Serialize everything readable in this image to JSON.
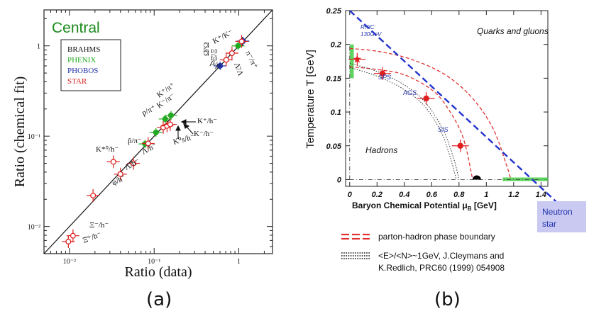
{
  "captions": {
    "a": "(a)",
    "b": "(b)"
  },
  "colors": {
    "brahms": "#111111",
    "phenix": "#22aa22",
    "phobos": "#2233aa",
    "star": "#dd2222",
    "central": "#1a8a1a",
    "dashblue": "#2233cc",
    "neutron_box": "#c9c9f2"
  },
  "chart_data": [
    {
      "type": "scatter",
      "panel": "a",
      "title": "Central",
      "xlabel": "Ratio (data)",
      "ylabel": "Ratio (chemical fit)",
      "xscale": "log",
      "yscale": "log",
      "xlim": [
        0.005,
        2.5
      ],
      "ylim": [
        0.005,
        2.5
      ],
      "xticks": [
        {
          "value": 0.01,
          "label": "10⁻²"
        },
        {
          "value": 0.1,
          "label": "10⁻¹"
        },
        {
          "value": 1,
          "label": "1"
        }
      ],
      "yticks": [
        {
          "value": 0.01,
          "label": "10⁻²"
        },
        {
          "value": 0.1,
          "label": "10⁻¹"
        },
        {
          "value": 1,
          "label": "1"
        }
      ],
      "legend": {
        "position": "top-left",
        "entries": [
          "BRAHMS",
          "PHENIX",
          "PHOBOS",
          "STAR"
        ]
      },
      "diagonal": "y = x",
      "points": [
        {
          "exp": "STAR",
          "x": 0.0097,
          "y": 0.0068
        },
        {
          "exp": "STAR",
          "x": 0.011,
          "y": 0.0079
        },
        {
          "exp": "STAR",
          "x": 0.019,
          "y": 0.022
        },
        {
          "exp": "STAR",
          "x": 0.04,
          "y": 0.038
        },
        {
          "exp": "STAR",
          "x": 0.057,
          "y": 0.05
        },
        {
          "exp": "STAR",
          "x": 0.033,
          "y": 0.052
        },
        {
          "exp": "PHENIX",
          "x": 0.078,
          "y": 0.082
        },
        {
          "exp": "STAR",
          "x": 0.085,
          "y": 0.083
        },
        {
          "exp": "PHENIX",
          "x": 0.105,
          "y": 0.11
        },
        {
          "exp": "STAR",
          "x": 0.128,
          "y": 0.125
        },
        {
          "exp": "STAR",
          "x": 0.142,
          "y": 0.13
        },
        {
          "exp": "STAR",
          "x": 0.155,
          "y": 0.135
        },
        {
          "exp": "PHENIX",
          "x": 0.135,
          "y": 0.155
        },
        {
          "exp": "PHENIX",
          "x": 0.158,
          "y": 0.17
        },
        {
          "exp": "PHOBOS",
          "x": 0.6,
          "y": 0.6
        },
        {
          "exp": "STAR",
          "x": 0.71,
          "y": 0.7
        },
        {
          "exp": "STAR",
          "x": 0.83,
          "y": 0.83
        },
        {
          "exp": "PHENIX",
          "x": 0.98,
          "y": 1.0
        },
        {
          "exp": "BRAHMS",
          "x": 1.1,
          "y": 1.12
        },
        {
          "exp": "PHOBOS",
          "x": 1.12,
          "y": 1.13
        },
        {
          "exp": "STAR",
          "x": 1.08,
          "y": 1.12
        }
      ],
      "annotations": [
        "K⁺/K⁻",
        "Ω̄/Ω",
        "Ξ̄/Ξ",
        "π⁻/π⁺",
        "p̄/p",
        "Λ̄/Λ",
        "K⁺/π⁺",
        "K⁻/π⁻",
        "p/π⁺",
        "p̄/π⁻",
        "K⁺/h⁻",
        "K⁻/h⁻",
        "K⁰s/h⁻",
        "K*⁰/h⁻",
        "Λ/h⁻",
        "Λ̄/h⁻",
        "φ/h⁻",
        "Ξ⁻/h⁻",
        "Ξ̄⁺/h⁻"
      ]
    },
    {
      "type": "line",
      "panel": "b",
      "xlabel": "Baryon Chemical Potential μB [GeV]",
      "ylabel": "Temperature T [GeV]",
      "xlim": [
        -0.03,
        1.45
      ],
      "ylim": [
        -0.01,
        0.25
      ],
      "xticks": [
        "0",
        "0.2",
        "0.4",
        "0.6",
        "0.8",
        "1",
        "1.2",
        "1.4"
      ],
      "yticks": [
        "0",
        "0.05",
        "0.1",
        "0.15",
        "0.2",
        "0.25"
      ],
      "region_labels": [
        "Quarks and gluons",
        "Hadrons"
      ],
      "points": [
        {
          "name": "RHIC 130GeV",
          "mu": 0.055,
          "T": 0.178,
          "marker": "star"
        },
        {
          "name": "SPS",
          "mu": 0.24,
          "T": 0.157,
          "marker": "circle"
        },
        {
          "name": "AGS",
          "mu": 0.56,
          "T": 0.12,
          "marker": "circle"
        },
        {
          "name": "SIS",
          "mu": 0.81,
          "T": 0.05,
          "marker": "circle"
        }
      ],
      "phase_boundary_outer": [
        [
          0,
          0.194
        ],
        [
          0.2,
          0.19
        ],
        [
          0.45,
          0.178
        ],
        [
          0.7,
          0.155
        ],
        [
          0.9,
          0.12
        ],
        [
          1.05,
          0.075
        ],
        [
          1.15,
          0.02
        ],
        [
          1.18,
          0
        ]
      ],
      "phase_boundary_inner": [
        [
          0,
          0.167
        ],
        [
          0.2,
          0.163
        ],
        [
          0.4,
          0.155
        ],
        [
          0.6,
          0.133
        ],
        [
          0.72,
          0.105
        ],
        [
          0.83,
          0.062
        ],
        [
          0.9,
          0
        ]
      ],
      "freezeout_curves": [
        [
          [
            0,
            0.172
          ],
          [
            0.2,
            0.16
          ],
          [
            0.4,
            0.14
          ],
          [
            0.55,
            0.115
          ],
          [
            0.68,
            0.075
          ],
          [
            0.76,
            0.032
          ],
          [
            0.8,
            0
          ]
        ],
        [
          [
            0,
            0.166
          ],
          [
            0.2,
            0.153
          ],
          [
            0.4,
            0.133
          ],
          [
            0.55,
            0.108
          ],
          [
            0.67,
            0.07
          ],
          [
            0.74,
            0.03
          ],
          [
            0.78,
            0
          ]
        ]
      ],
      "dash_blue_line": [
        [
          0.0,
          0.25
        ],
        [
          1.55,
          -0.04
        ]
      ],
      "green_band_low_mu": {
        "mu": [
          0,
          0.03
        ],
        "T": [
          0.15,
          0.2
        ]
      },
      "green_band_ground": {
        "mu": [
          1.12,
          1.45
        ],
        "T": 0.002
      },
      "black_blob": {
        "mu": 0.93,
        "T": 0.0
      },
      "neutron_star_label": "Neutron star",
      "legend": [
        {
          "style": "red-dashed",
          "label": "parton-hadron phase boundary"
        },
        {
          "style": "black-dotted",
          "label": "<E>/<N>~1GeV, J.Cleymans and",
          "label2": "K.Redlich, PRC60 (1999) 054908"
        }
      ]
    }
  ]
}
